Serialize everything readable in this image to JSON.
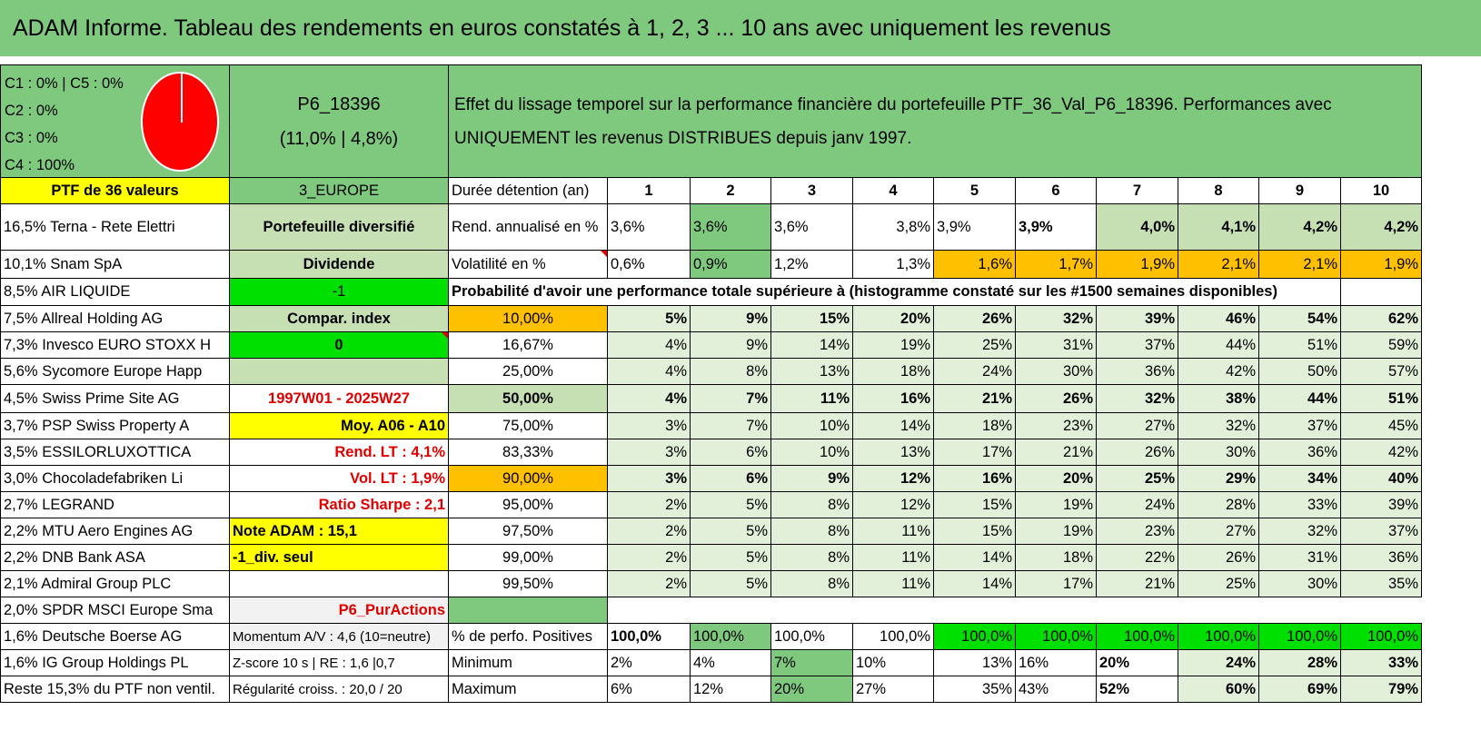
{
  "title": "ADAM Informe. Tableau des rendements en euros constatés à 1, 2, 3 ... 10 ans avec uniquement les revenus",
  "pie": {
    "lines": [
      "C1 : 0% | C5 : 0%",
      "C2 : 0%",
      "C3 : 0%",
      "C4 : 100%"
    ],
    "color": "#ff0000"
  },
  "portfolio": {
    "id": "P6_18396",
    "perf": "(11,0% | 4,8%)",
    "description": "Effet du lissage temporel sur la performance financière du portefeuille PTF_36_Val_P6_18396. Performances avec UNIQUEMENT les revenus DISTRIBUES depuis janv 1997."
  },
  "header_row": {
    "ptf_label": "PTF de 36 valeurs",
    "region": "3_EUROPE",
    "duration_label": "Durée détention (an)",
    "years": [
      "1",
      "2",
      "3",
      "4",
      "5",
      "6",
      "7",
      "8",
      "9",
      "10"
    ]
  },
  "holdings": [
    "16,5% Terna - Rete Elettri",
    "10,1% Snam SpA",
    "8,5% AIR LIQUIDE",
    "7,5% Allreal Holding AG",
    "7,3% Invesco EURO STOXX H",
    "5,6% Sycomore Europe Happ",
    "4,5% Swiss Prime Site AG",
    "3,7% PSP Swiss Property A",
    "3,5% ESSILORLUXOTTICA",
    "3,0% Chocoladefabriken Li",
    "2,7% LEGRAND",
    "2,2% MTU Aero Engines AG",
    "2,2% DNB Bank ASA",
    "2,1% Admiral Group PLC",
    "2,0% SPDR MSCI Europe Sma",
    "1,6% Deutsche Boerse AG",
    "1,6% IG Group Holdings PL",
    "Reste 15,3% du PTF non ventil."
  ],
  "info": {
    "diversified": "Portefeuille diversifié",
    "dividend": "Dividende",
    "signal": "-1",
    "compar_index": "Compar. index",
    "index_value": "0",
    "period": "1997W01 - 2025W27",
    "moy": "Moy. A06 - A10",
    "rend_lt": "Rend. LT : 4,1%",
    "vol_lt": "Vol. LT : 1,9%",
    "sharpe": "Ratio Sharpe : 2,1",
    "note": "Note ADAM : 15,1",
    "div_only": "-1_div. seul",
    "pur_actions": "P6_PurActions",
    "momentum": "Momentum A/V : 4,6 (10=neutre)",
    "zscore": "Z-score 10 s | RE : 1,6 |0,7",
    "regularity": "Régularité croiss. : 20,0 / 20"
  },
  "rend": {
    "label": "Rend. annualisé en %",
    "values": [
      "3,6%",
      "3,6%",
      "3,6%",
      "3,8%",
      "3,9%",
      "3,9%",
      "4,0%",
      "4,1%",
      "4,2%",
      "4,2%"
    ]
  },
  "vol": {
    "label": "Volatilité en %",
    "values": [
      "0,6%",
      "0,9%",
      "1,2%",
      "1,3%",
      "1,6%",
      "1,7%",
      "1,9%",
      "2,1%",
      "2,1%",
      "1,9%"
    ]
  },
  "prob_title": "Probabilité d'avoir une performance totale supérieure à (histogramme constaté sur les #1500 semaines disponibles)",
  "prob_rows": [
    {
      "pct": "10,00%",
      "values": [
        "5%",
        "9%",
        "15%",
        "20%",
        "26%",
        "32%",
        "39%",
        "46%",
        "54%",
        "62%"
      ]
    },
    {
      "pct": "16,67%",
      "values": [
        "4%",
        "9%",
        "14%",
        "19%",
        "25%",
        "31%",
        "37%",
        "44%",
        "51%",
        "59%"
      ]
    },
    {
      "pct": "25,00%",
      "values": [
        "4%",
        "8%",
        "13%",
        "18%",
        "24%",
        "30%",
        "36%",
        "42%",
        "50%",
        "57%"
      ]
    },
    {
      "pct": "50,00%",
      "values": [
        "4%",
        "7%",
        "11%",
        "16%",
        "21%",
        "26%",
        "32%",
        "38%",
        "44%",
        "51%"
      ]
    },
    {
      "pct": "75,00%",
      "values": [
        "3%",
        "7%",
        "10%",
        "14%",
        "18%",
        "23%",
        "27%",
        "32%",
        "37%",
        "45%"
      ]
    },
    {
      "pct": "83,33%",
      "values": [
        "3%",
        "6%",
        "10%",
        "13%",
        "17%",
        "21%",
        "26%",
        "30%",
        "36%",
        "42%"
      ]
    },
    {
      "pct": "90,00%",
      "values": [
        "3%",
        "6%",
        "9%",
        "12%",
        "16%",
        "20%",
        "25%",
        "29%",
        "34%",
        "40%"
      ]
    },
    {
      "pct": "95,00%",
      "values": [
        "2%",
        "5%",
        "8%",
        "12%",
        "15%",
        "19%",
        "24%",
        "28%",
        "33%",
        "39%"
      ]
    },
    {
      "pct": "97,50%",
      "values": [
        "2%",
        "5%",
        "8%",
        "11%",
        "15%",
        "19%",
        "23%",
        "27%",
        "32%",
        "37%"
      ]
    },
    {
      "pct": "99,00%",
      "values": [
        "2%",
        "5%",
        "8%",
        "11%",
        "14%",
        "18%",
        "22%",
        "26%",
        "31%",
        "36%"
      ]
    },
    {
      "pct": "99,50%",
      "values": [
        "2%",
        "5%",
        "8%",
        "11%",
        "14%",
        "17%",
        "21%",
        "25%",
        "30%",
        "35%"
      ]
    }
  ],
  "positives": {
    "label": "% de perfo. Positives",
    "values": [
      "100,0%",
      "100,0%",
      "100,0%",
      "100,0%",
      "100,0%",
      "100,0%",
      "100,0%",
      "100,0%",
      "100,0%",
      "100,0%"
    ]
  },
  "minimum": {
    "label": "Minimum",
    "values": [
      "2%",
      "4%",
      "7%",
      "10%",
      "13%",
      "16%",
      "20%",
      "24%",
      "28%",
      "33%"
    ]
  },
  "maximum": {
    "label": "Maximum",
    "values": [
      "6%",
      "12%",
      "20%",
      "27%",
      "35%",
      "43%",
      "52%",
      "60%",
      "69%",
      "79%"
    ]
  },
  "colors": {
    "header_green": "#7fc97f",
    "light_green": "#c6e0b4",
    "orange": "#ffc000",
    "yellow": "#ffff00",
    "bright_green": "#00e000",
    "red": "#ff0000"
  }
}
